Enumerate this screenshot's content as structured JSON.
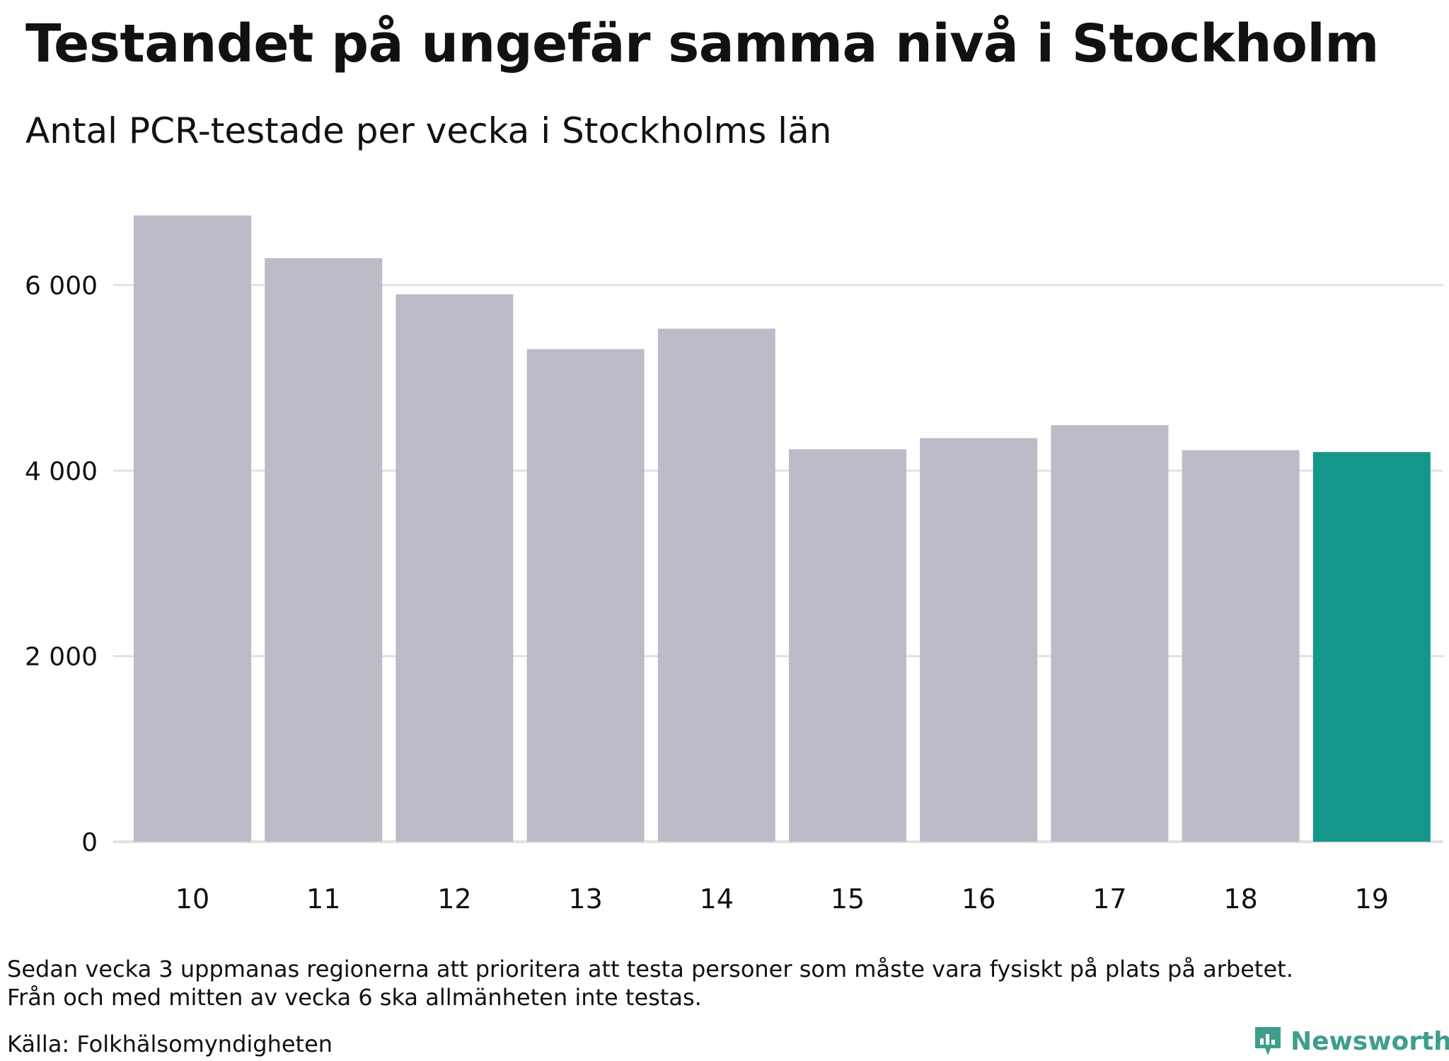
{
  "header": {
    "title": "Testandet på ungefär samma nivå i Stockholm",
    "subtitle": "Antal PCR-testade per vecka i Stockholms län"
  },
  "footer": {
    "note_line1": "Sedan vecka 3 uppmanas regionerna att prioritera att testa personer som måste vara fysiskt på plats på arbetet.",
    "note_line2": "Från och med mitten av vecka 6 ska allmänheten inte testas.",
    "source": "Källa: Folkhälsomyndigheten",
    "brand": "Newsworthy",
    "brand_icon": "bar-chart-icon"
  },
  "colors": {
    "bar": "#bdbbc8",
    "highlight": "#15968a",
    "gridline": "#e2e2e2",
    "brand": "#3e9e8c"
  },
  "chart_data": {
    "type": "bar",
    "title": "Testandet på ungefär samma nivå i Stockholm",
    "subtitle": "Antal PCR-testade per vecka i Stockholms län",
    "xlabel": "",
    "ylabel": "",
    "categories": [
      "10",
      "11",
      "12",
      "13",
      "14",
      "15",
      "16",
      "17",
      "18",
      "19"
    ],
    "values": [
      6750,
      6290,
      5900,
      5310,
      5530,
      4230,
      4350,
      4490,
      4220,
      4200
    ],
    "highlight_index": 9,
    "ylim": [
      0,
      7000
    ],
    "yticks": [
      0,
      2000,
      4000,
      6000
    ],
    "ytick_labels": [
      "0",
      "2 000",
      "4 000",
      "6 000"
    ],
    "grid": true,
    "legend": "none"
  }
}
